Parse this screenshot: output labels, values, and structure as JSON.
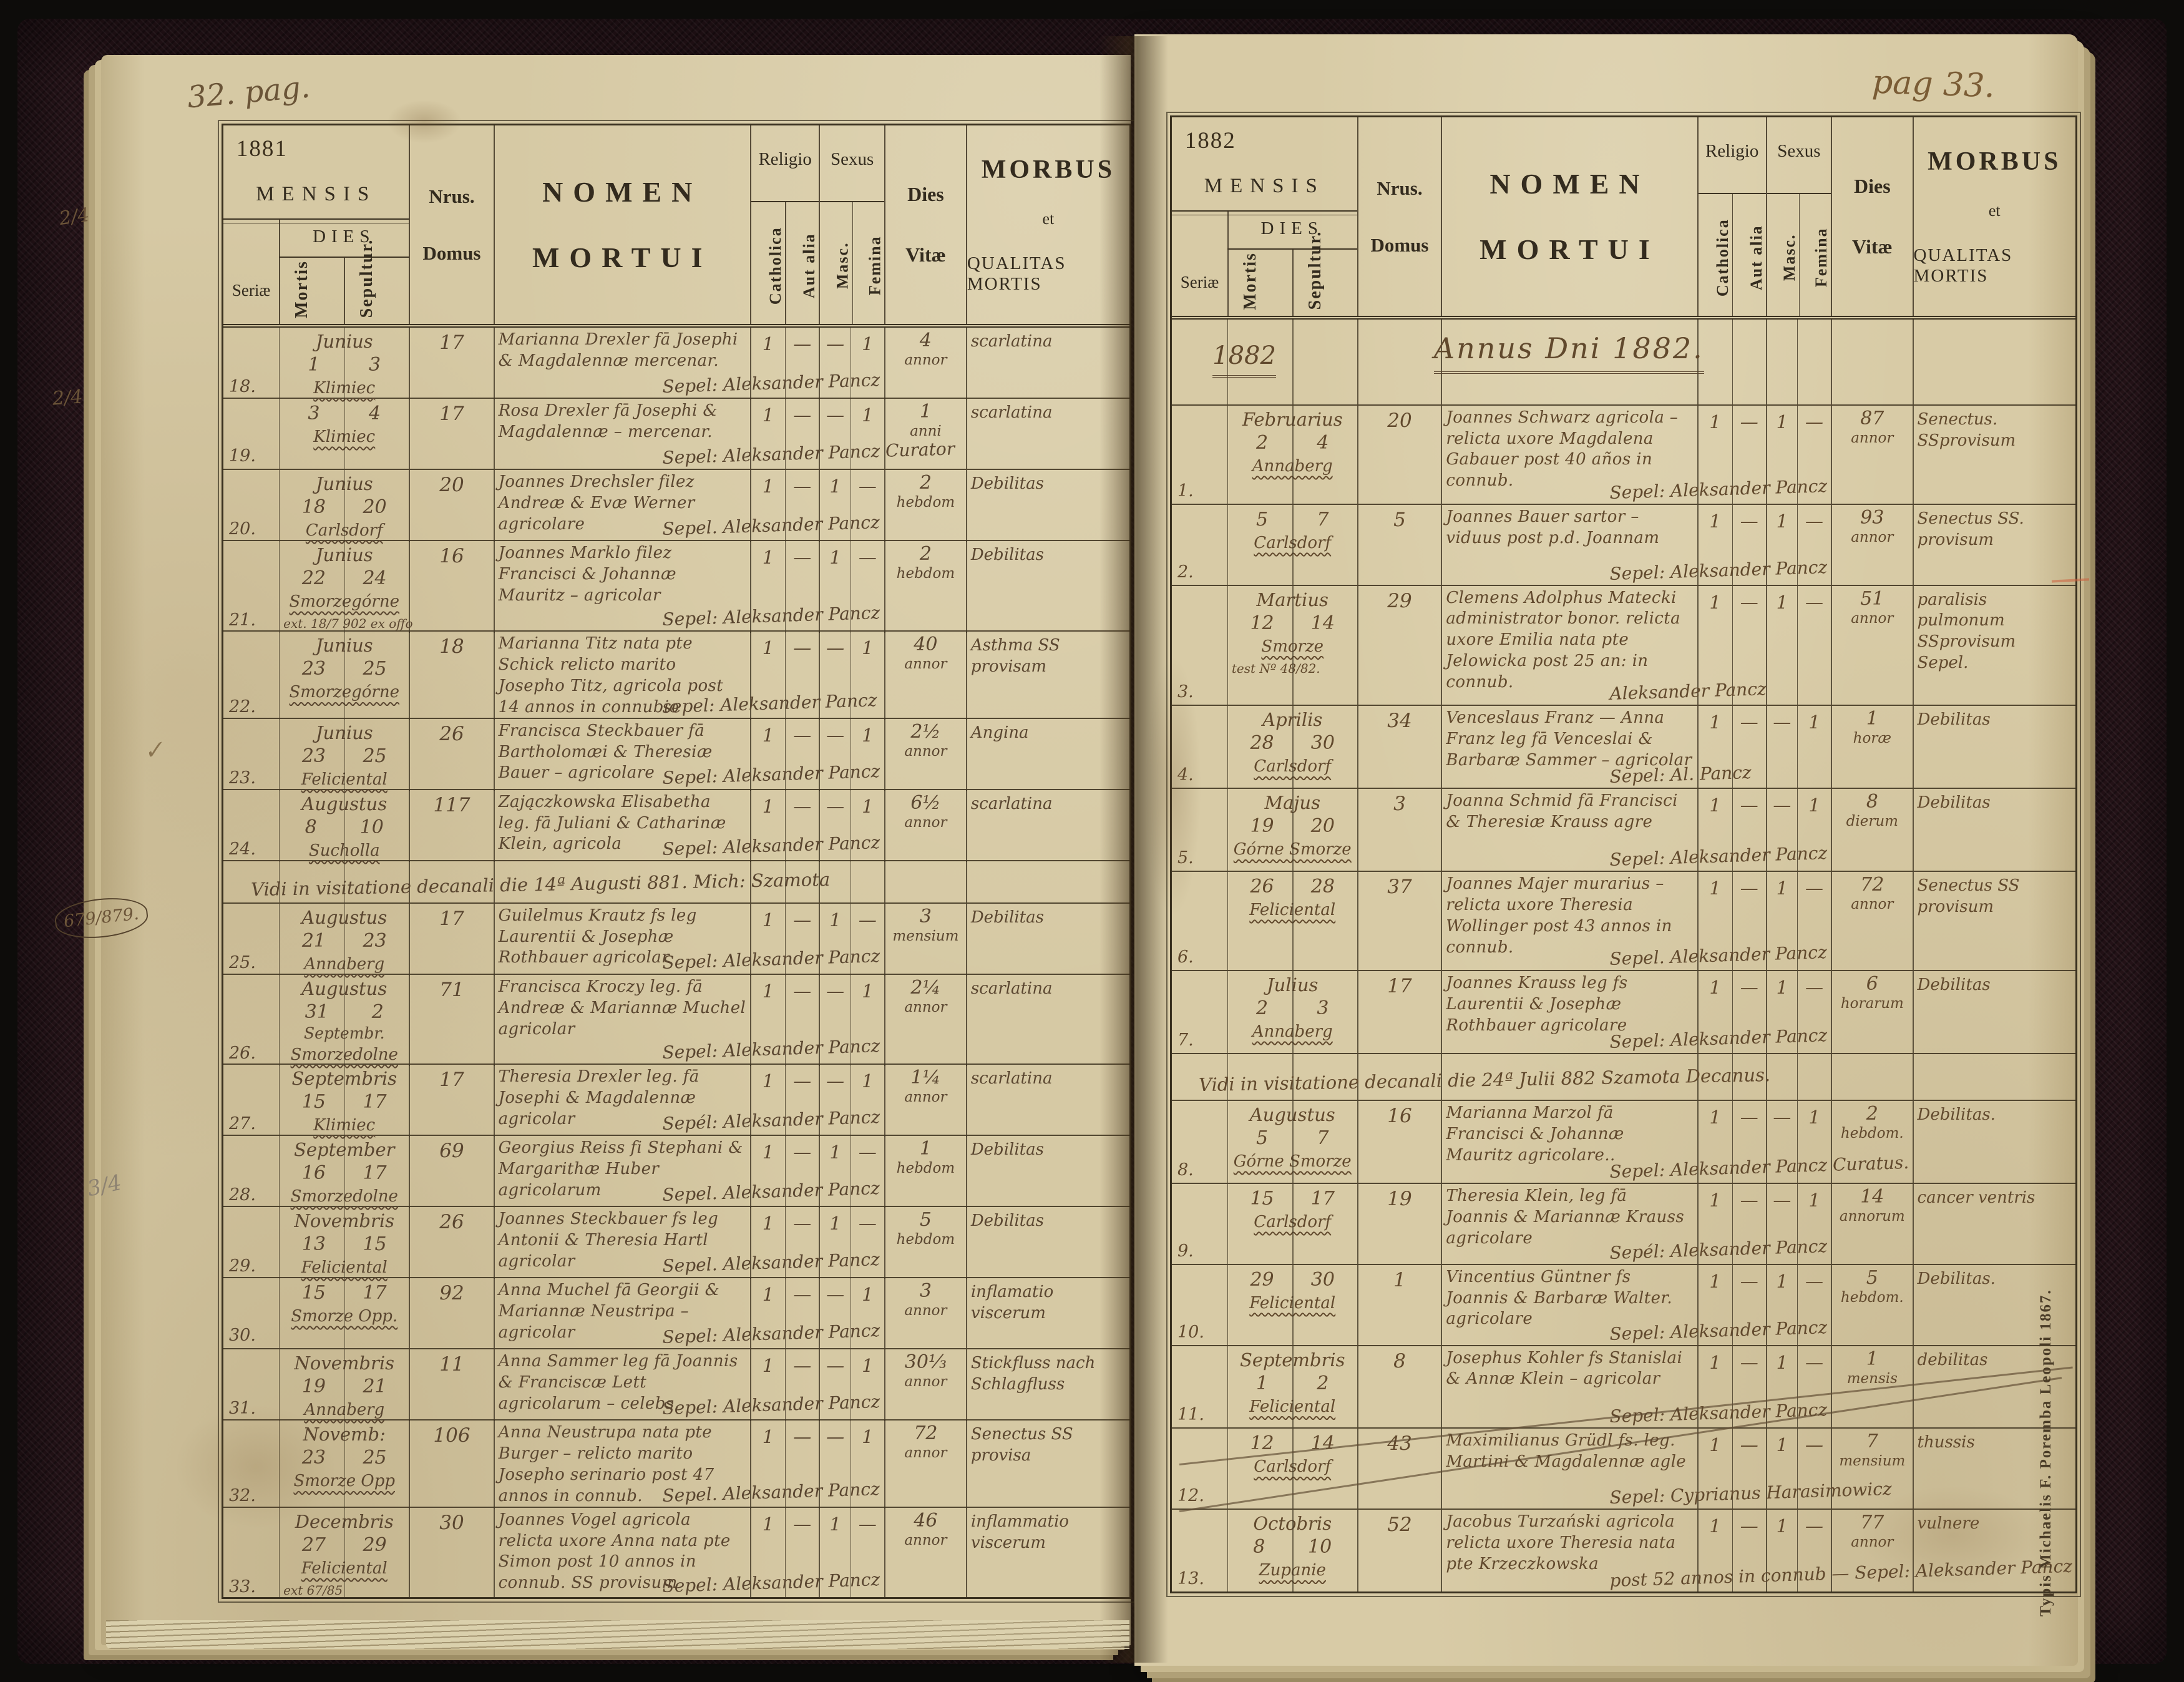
{
  "book": {
    "title_context": "Parish register of deaths (Liber Mortuorum), two-page spread",
    "imprint": "Typis Michaelis F. Poremba Leopoli 1867.",
    "margin_notes": [
      "2/4",
      "2/4",
      "✓",
      "679/879.",
      "3/4"
    ],
    "colors": {
      "paper": "#d6c9a4",
      "printed_ink": "#332b1e",
      "handwriting_ink": "#5a4630",
      "cover": "#261419"
    }
  },
  "header": {
    "mensis": "MENSIS",
    "dies": "DIES",
    "seriae": "Seriæ",
    "mortis": "Mortis",
    "sepultur": "Sepultur.",
    "nrus": "Nrus.",
    "domus": "Domus",
    "nomen_1": "NOMEN",
    "nomen_2": "MORTUI",
    "religio": "Religio",
    "catholica": "Catholica",
    "aut_alia": "Aut alia",
    "sexus": "Sexus",
    "masc": "Masc.",
    "femina": "Femina",
    "dies_1": "Dies",
    "dies_2": "Vitæ",
    "morbus_1": "MORBUS",
    "morbus_2": "et",
    "morbus_3": "QUALITAS MORTIS"
  },
  "pages": [
    {
      "side": "left",
      "page_label": "32. pag.",
      "year": "1881",
      "rows": [
        {
          "type": "entry",
          "seriae": "18.",
          "month": "Junius",
          "mortis": "1",
          "sepultur": "3",
          "locus": "Klimiec",
          "domus": "17",
          "nomen": "Marianna Drexler fā Josephi & Magdalennæ mercenar.",
          "cath": "1",
          "alia": "—",
          "masc": "—",
          "fem": "1",
          "vitae_num": "4",
          "vitae_unit": "annor",
          "morbus": "scarlatina",
          "sepel": "Sepel: Aleksander Pancz"
        },
        {
          "type": "entry",
          "seriae": "19.",
          "mortis": "3",
          "sepultur": "4",
          "locus": "Klimiec",
          "domus": "17",
          "nomen": "Rosa Drexler fā Josephi & Magdalennæ – mercenar.",
          "cath": "1",
          "alia": "—",
          "masc": "—",
          "fem": "1",
          "vitae_num": "1",
          "vitae_unit": "anni",
          "morbus": "scarlatina",
          "sepel": "Sepel: Aleksander Pancz Curator"
        },
        {
          "type": "entry",
          "seriae": "20.",
          "month": "Junius",
          "mortis": "18",
          "sepultur": "20",
          "locus": "Carlsdorf",
          "domus": "20",
          "nomen": "Joannes Drechsler filez Andreæ & Evæ Werner agricolare",
          "cath": "1",
          "alia": "—",
          "masc": "1",
          "fem": "—",
          "vitae_num": "2",
          "vitae_unit": "hebdom",
          "morbus": "Debilitas",
          "sepel": "Sepel. Aleksander Pancz"
        },
        {
          "type": "entry",
          "seriae": "21.",
          "month": "Junius",
          "mortis": "22",
          "sepultur": "24",
          "locus": "Smorzegórne",
          "note": "ext. 18/7 902 ex offo",
          "domus": "16",
          "nomen": "Joannes Marklo filez Francisci & Johannæ Mauritz – agricolar",
          "cath": "1",
          "alia": "—",
          "masc": "1",
          "fem": "—",
          "vitae_num": "2",
          "vitae_unit": "hebdom",
          "morbus": "Debilitas",
          "sepel": "Sepel: Aleksander Pancz"
        },
        {
          "type": "entry",
          "seriae": "22.",
          "month": "Junius",
          "mortis": "23",
          "sepultur": "25",
          "locus": "Smorzegórne",
          "domus": "18",
          "nomen": "Marianna Titz nata pte Schick relicto marito Josepho Titz, agricola post 14 annos in connubio",
          "cath": "1",
          "alia": "—",
          "masc": "—",
          "fem": "1",
          "vitae_num": "40",
          "vitae_unit": "annor",
          "morbus": "Asthma SS provisam",
          "sepel": "sepel: Aleksander Pancz"
        },
        {
          "type": "entry",
          "seriae": "23.",
          "month": "Junius",
          "mortis": "23",
          "sepultur": "25",
          "locus": "Feliciental",
          "domus": "26",
          "nomen": "Francisca Steckbauer fā Bartholomæi & Theresiæ Bauer – agricolare",
          "cath": "1",
          "alia": "—",
          "masc": "—",
          "fem": "1",
          "vitae_num": "2½",
          "vitae_unit": "annor",
          "morbus": "Angina",
          "sepel": "Sepel: Aleksander Pancz"
        },
        {
          "type": "entry",
          "seriae": "24.",
          "month": "Augustus",
          "mortis": "8",
          "sepultur": "10",
          "locus": "Sucholla",
          "domus": "117",
          "nomen": "Zajączkowska Elisabetha leg. fā Juliani & Catharinæ Klein, agricola",
          "cath": "1",
          "alia": "—",
          "masc": "—",
          "fem": "1",
          "vitae_num": "6½",
          "vitae_unit": "annor",
          "morbus": "scarlatina",
          "sepel": "Sepel: Aleksander Pancz"
        },
        {
          "type": "visitation",
          "text": "Vidi in visitatione decanali die 14ª Augusti 881. Mich: Szamota"
        },
        {
          "type": "entry",
          "seriae": "25.",
          "month": "Augustus",
          "mortis": "21",
          "sepultur": "23",
          "locus": "Annaberg",
          "domus": "17",
          "nomen": "Guilelmus Krautz fs leg Laurentii & Josephæ Rothbauer agricolar",
          "cath": "1",
          "alia": "—",
          "masc": "1",
          "fem": "—",
          "vitae_num": "3",
          "vitae_unit": "mensium",
          "morbus": "Debilitas",
          "sepel": "Sepel: Aleksander Pancz"
        },
        {
          "type": "entry",
          "seriae": "26.",
          "month": "Augustus",
          "mortis": "31",
          "sepultur": "2",
          "month2": "Septembr.",
          "locus": "Smorzedolne",
          "domus": "71",
          "nomen": "Francisca Kroczy leg. fā Andreæ & Mariannæ Muchel agricolar",
          "cath": "1",
          "alia": "—",
          "masc": "—",
          "fem": "1",
          "vitae_num": "2¼",
          "vitae_unit": "annor",
          "morbus": "scarlatina",
          "sepel": "Sepel: Aleksander Pancz"
        },
        {
          "type": "entry",
          "seriae": "27.",
          "month": "Septembris",
          "mortis": "15",
          "sepultur": "17",
          "locus": "Klimiec",
          "domus": "17",
          "nomen": "Theresia Drexler leg. fā Josephi & Magdalennæ agricolar",
          "cath": "1",
          "alia": "—",
          "masc": "—",
          "fem": "1",
          "vitae_num": "1¼",
          "vitae_unit": "annor",
          "morbus": "scarlatina",
          "sepel": "Sepél: Aleksander Pancz"
        },
        {
          "type": "entry",
          "seriae": "28.",
          "month": "September",
          "mortis": "16",
          "sepultur": "17",
          "locus": "Smorzedolne",
          "domus": "69",
          "nomen": "Georgius Reiss fi Stephani & Margarithæ Huber agricolarum",
          "cath": "1",
          "alia": "—",
          "masc": "1",
          "fem": "—",
          "vitae_num": "1",
          "vitae_unit": "hebdom",
          "morbus": "Debilitas",
          "sepel": "Sepel. Aleksander Pancz"
        },
        {
          "type": "entry",
          "seriae": "29.",
          "month": "Novembris",
          "mortis": "13",
          "sepultur": "15",
          "locus": "Feliciental",
          "domus": "26",
          "nomen": "Joannes Steckbauer fs leg Antonii & Theresia Hartl agricolar",
          "cath": "1",
          "alia": "—",
          "masc": "1",
          "fem": "—",
          "vitae_num": "5",
          "vitae_unit": "hebdom",
          "morbus": "Debilitas",
          "sepel": "Sepel. Aleksander Pancz"
        },
        {
          "type": "entry",
          "seriae": "30.",
          "mortis": "15",
          "sepultur": "17",
          "locus": "Smorze Opp.",
          "domus": "92",
          "nomen": "Anna Muchel fā Georgii & Mariannæ Neustripa – agricolar",
          "cath": "1",
          "alia": "—",
          "masc": "—",
          "fem": "1",
          "vitae_num": "3",
          "vitae_unit": "annor",
          "morbus": "inflamatio viscerum",
          "sepel": "Sepel: Aleksander Pancz"
        },
        {
          "type": "entry",
          "seriae": "31.",
          "month": "Novembris",
          "mortis": "19",
          "sepultur": "21",
          "locus": "Annaberg",
          "domus": "11",
          "nomen": "Anna Sammer leg fā Joannis & Franciscæ Lett agricolarum – celebs",
          "cath": "1",
          "alia": "—",
          "masc": "—",
          "fem": "1",
          "vitae_num": "30⅓",
          "vitae_unit": "annor",
          "morbus": "Stickfluss nach Schlagfluss",
          "sepel": "Sepel: Aleksander Pancz"
        },
        {
          "type": "entry",
          "seriae": "32.",
          "month": "Novemb:",
          "mortis": "23",
          "sepultur": "25",
          "locus": "Smorze Opp",
          "domus": "106",
          "nomen": "Anna Neustrupa nata pte Burger – relicto marito Josepho serinario post 47 annos in connub.",
          "cath": "1",
          "alia": "—",
          "masc": "—",
          "fem": "1",
          "vitae_num": "72",
          "vitae_unit": "annor",
          "morbus": "Senectus SS provisa",
          "sepel": "Sepel. Aleksander Pancz"
        },
        {
          "type": "entry",
          "seriae": "33.",
          "month": "Decembris",
          "mortis": "27",
          "sepultur": "29",
          "locus": "Feliciental",
          "note": "ext 67/85",
          "domus": "30",
          "nomen": "Joannes Vogel agricola relicta uxore Anna nata pte Simon post 10 annos in connub. SS provisum",
          "cath": "1",
          "alia": "—",
          "masc": "1",
          "fem": "—",
          "vitae_num": "46",
          "vitae_unit": "annor",
          "morbus": "inflammatio viscerum",
          "sepel": "Sepel: Aleksander Pancz"
        }
      ]
    },
    {
      "side": "right",
      "page_label": "pag 33.",
      "year": "1882",
      "rows": [
        {
          "type": "annus",
          "year_script": "1882",
          "text": "Annus Dni 1882."
        },
        {
          "type": "entry",
          "seriae": "1.",
          "month": "Februarius",
          "mortis": "2",
          "sepultur": "4",
          "locus": "Annaberg",
          "domus": "20",
          "nomen": "Joannes Schwarz agricola – relicta uxore Magdalena Gabauer post 40 años in connub.",
          "cath": "1",
          "alia": "—",
          "masc": "1",
          "fem": "—",
          "vitae_num": "87",
          "vitae_unit": "annor",
          "morbus": "Senectus. SSprovisum",
          "sepel": "Sepel: Aleksander Pancz"
        },
        {
          "type": "entry",
          "seriae": "2.",
          "mortis": "5",
          "sepultur": "7",
          "locus": "Carlsdorf",
          "domus": "5",
          "nomen": "Joannes Bauer sartor – viduus post p.d. Joannam",
          "cath": "1",
          "alia": "—",
          "masc": "1",
          "fem": "—",
          "vitae_num": "93",
          "vitae_unit": "annor",
          "morbus": "Senectus SS. provisum",
          "sepel": "Sepel: Aleksander Pancz"
        },
        {
          "type": "entry",
          "seriae": "3.",
          "month": "Martius",
          "mortis": "12",
          "sepultur": "14",
          "locus": "Smorze",
          "note": "test Nº 48/82.",
          "domus": "29",
          "nomen": "Clemens Adolphus Matecki administrator bonor. relicta uxore Emilia nata pte Jelowicka post 25 an: in connub.",
          "cath": "1",
          "alia": "—",
          "masc": "1",
          "fem": "—",
          "vitae_num": "51",
          "vitae_unit": "annor",
          "morbus": "paralisis pulmonum SSprovisum Sepel.",
          "sepel": "Aleksander Pancz"
        },
        {
          "type": "entry",
          "seriae": "4.",
          "month": "Aprilis",
          "mortis": "28",
          "sepultur": "30",
          "locus": "Carlsdorf",
          "domus": "34",
          "nomen": "Venceslaus Franz — Anna Franz leg fā Venceslai & Barbaræ Sammer – agricolar",
          "cath": "1",
          "alia": "—",
          "masc": "—",
          "fem": "1",
          "vitae_num": "1",
          "vitae_unit": "horæ",
          "morbus": "Debilitas",
          "sepel": "Sepel: Al. Pancz"
        },
        {
          "type": "entry",
          "seriae": "5.",
          "month": "Majus",
          "mortis": "19",
          "sepultur": "20",
          "locus": "Górne Smorze",
          "domus": "3",
          "nomen": "Joanna Schmid fā Francisci & Theresiæ Krauss agre",
          "cath": "1",
          "alia": "—",
          "masc": "—",
          "fem": "1",
          "vitae_num": "8",
          "vitae_unit": "dierum",
          "morbus": "Debilitas",
          "sepel": "Sepel: Aleksander Pancz"
        },
        {
          "type": "entry",
          "seriae": "6.",
          "mortis": "26",
          "sepultur": "28",
          "locus": "Feliciental",
          "domus": "37",
          "nomen": "Joannes Majer murarius – relicta uxore Theresia Wollinger post 43 annos in connub.",
          "cath": "1",
          "alia": "—",
          "masc": "1",
          "fem": "—",
          "vitae_num": "72",
          "vitae_unit": "annor",
          "morbus": "Senectus SS provisum",
          "sepel": "Sepel. Aleksander Pancz"
        },
        {
          "type": "entry",
          "seriae": "7.",
          "month": "Julius",
          "mortis": "2",
          "sepultur": "3",
          "locus": "Annaberg",
          "domus": "17",
          "nomen": "Joannes Krauss leg fs Laurentii & Josephæ Rothbauer agricolare",
          "cath": "1",
          "alia": "—",
          "masc": "1",
          "fem": "—",
          "vitae_num": "6",
          "vitae_unit": "horarum",
          "morbus": "Debilitas",
          "sepel": "Sepel: Aleksander Pancz"
        },
        {
          "type": "visitation",
          "text": "Vidi in visitatione decanali die 24ª Julii 882 Szamota Decanus."
        },
        {
          "type": "entry",
          "seriae": "8.",
          "month": "Augustus",
          "mortis": "5",
          "sepultur": "7",
          "locus": "Górne Smorze",
          "domus": "16",
          "nomen": "Marianna Marzol fā Francisci & Johannæ Mauritz agricolare..",
          "cath": "1",
          "alia": "—",
          "masc": "—",
          "fem": "1",
          "vitae_num": "2",
          "vitae_unit": "hebdom.",
          "morbus": "Debilitas.",
          "sepel": "Sepel: Aleksander Pancz Curatus."
        },
        {
          "type": "entry",
          "seriae": "9.",
          "mortis": "15",
          "sepultur": "17",
          "locus": "Carlsdorf",
          "domus": "19",
          "nomen": "Theresia Klein, leg fā Joannis & Mariannæ Krauss agricolare",
          "cath": "1",
          "alia": "—",
          "masc": "—",
          "fem": "1",
          "vitae_num": "14",
          "vitae_unit": "annorum",
          "morbus": "cancer ventris",
          "sepel": "Sepél: Aleksander Pancz"
        },
        {
          "type": "entry",
          "seriae": "10.",
          "mortis": "29",
          "sepultur": "30",
          "locus": "Feliciental",
          "domus": "1",
          "nomen": "Vincentius Güntner fs Joannis & Barbaræ Walter. agricolare",
          "cath": "1",
          "alia": "—",
          "masc": "1",
          "fem": "—",
          "vitae_num": "5",
          "vitae_unit": "hebdom.",
          "morbus": "Debilitas.",
          "sepel": "Sepel: Aleksander Pancz"
        },
        {
          "type": "entry",
          "seriae": "11.",
          "month": "Septembris",
          "mortis": "1",
          "sepultur": "2",
          "locus": "Feliciental",
          "domus": "8",
          "nomen": "Josephus Kohler fs Stanislai & Annæ Klein – agricolar",
          "cath": "1",
          "alia": "—",
          "masc": "1",
          "fem": "—",
          "vitae_num": "1",
          "vitae_unit": "mensis",
          "morbus": "debilitas",
          "sepel": "Sepel: Aleksander Pancz"
        },
        {
          "type": "entry",
          "seriae": "12.",
          "mortis": "12",
          "sepultur": "14",
          "locus": "Carlsdorf",
          "domus": "43",
          "nomen": "Maximilianus Grüdl fs. leg. Martini & Magdalennæ agle",
          "cath": "1",
          "alia": "—",
          "masc": "1",
          "fem": "—",
          "vitae_num": "7",
          "vitae_unit": "mensium",
          "morbus": "thussis",
          "sepel": "Sepel: Cyprianus Harasimowicz"
        },
        {
          "type": "entry",
          "seriae": "13.",
          "month": "Octobris",
          "mortis": "8",
          "sepultur": "10",
          "locus": "Zupanie",
          "domus": "52",
          "nomen": "Jacobus Turzański agricola relicta uxore Theresia nata pte Krzeczkowska",
          "cath": "1",
          "alia": "—",
          "masc": "1",
          "fem": "—",
          "vitae_num": "77",
          "vitae_unit": "annor",
          "morbus": "vulnere",
          "sepel": "post 52 annos in connub — Sepel: Aleksander Pancz"
        }
      ]
    }
  ]
}
